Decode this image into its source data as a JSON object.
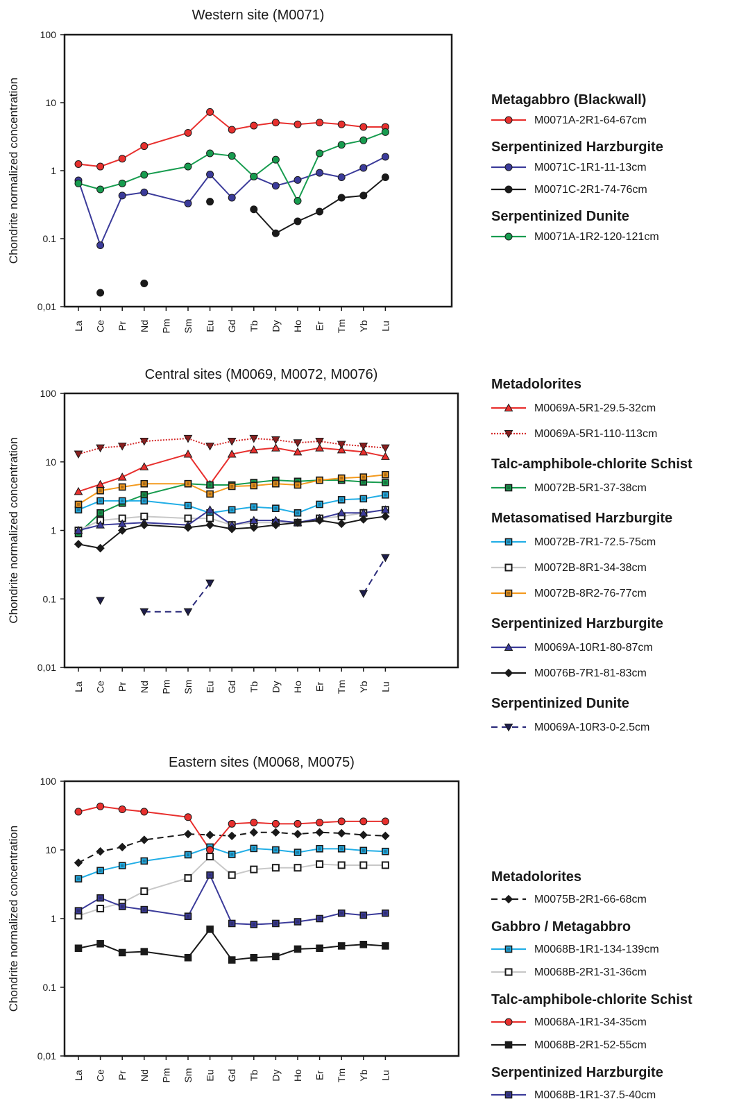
{
  "ylabel": "Chondrite normalized concentration",
  "y_ticks": [
    "100",
    "10",
    "1",
    "0.1",
    "0,01"
  ],
  "elements": [
    "La",
    "Ce",
    "Pr",
    "Nd",
    "Pm",
    "Sm",
    "Eu",
    "Gd",
    "Tb",
    "Dy",
    "Ho",
    "Er",
    "Tm",
    "Yb",
    "Lu"
  ],
  "chart_data": [
    {
      "type": "line",
      "title": "Western site (M0071)",
      "ylabel": "Chondrite normalized concentration",
      "ylim": [
        0.01,
        100
      ],
      "y_scale": "log",
      "categories": [
        "La",
        "Ce",
        "Pr",
        "Nd",
        "Pm",
        "Sm",
        "Eu",
        "Gd",
        "Tb",
        "Dy",
        "Ho",
        "Er",
        "Tm",
        "Yb",
        "Lu"
      ],
      "legend": [
        {
          "heading": "Metagabbro (Blackwall)",
          "items": [
            0
          ]
        },
        {
          "heading": "Serpentinized Harzburgite",
          "items": [
            1,
            2
          ]
        },
        {
          "heading": "Serpentinized Dunite",
          "items": [
            3
          ]
        }
      ],
      "series": [
        {
          "name": "M0071A-2R1-64-67cm",
          "color": "#e8302e",
          "marker": "circle",
          "fill": "#e8302e",
          "dash": "solid",
          "values": [
            1.25,
            1.15,
            1.5,
            2.3,
            null,
            3.6,
            7.3,
            4.0,
            4.6,
            5.1,
            4.8,
            5.1,
            4.8,
            4.4,
            4.4
          ]
        },
        {
          "name": "M0071C-1R1-11-13cm",
          "color": "#3b3b9a",
          "marker": "circle",
          "fill": "#3b3b9a",
          "dash": "solid",
          "values": [
            0.72,
            0.08,
            0.43,
            0.48,
            null,
            0.33,
            0.88,
            0.4,
            0.82,
            0.6,
            0.73,
            0.93,
            0.8,
            1.1,
            1.6
          ]
        },
        {
          "name": "M0071C-2R1-74-76cm",
          "color": "#1a1a1a",
          "marker": "circle",
          "fill": "#1a1a1a",
          "dash": "solid",
          "values": [
            null,
            0.016,
            null,
            0.022,
            null,
            null,
            0.35,
            null,
            0.27,
            0.12,
            0.18,
            0.25,
            0.4,
            0.43,
            0.8
          ]
        },
        {
          "name": "M0071A-1R2-120-121cm",
          "color": "#179c4f",
          "marker": "circle",
          "fill": "#179c4f",
          "dash": "solid",
          "values": [
            0.65,
            0.53,
            0.65,
            0.87,
            null,
            1.15,
            1.8,
            1.65,
            0.82,
            1.45,
            0.36,
            1.8,
            2.4,
            2.8,
            3.7
          ]
        }
      ]
    },
    {
      "type": "line",
      "title": "Central sites (M0069, M0072, M0076)",
      "ylabel": "Chondrite normalized concentration",
      "ylim": [
        0.01,
        100
      ],
      "y_scale": "log",
      "categories": [
        "La",
        "Ce",
        "Pr",
        "Nd",
        "Pm",
        "Sm",
        "Eu",
        "Gd",
        "Tb",
        "Dy",
        "Ho",
        "Er",
        "Tm",
        "Yb",
        "Lu"
      ],
      "legend": [
        {
          "heading": "Metadolorites",
          "items": [
            0,
            1
          ]
        },
        {
          "heading": "Talc-amphibole-chlorite Schist",
          "items": [
            2
          ]
        },
        {
          "heading": "Metasomatised Harzburgite",
          "items": [
            3,
            4,
            5
          ]
        },
        {
          "heading": "Serpentinized Harzburgite",
          "items": [
            6,
            7
          ]
        },
        {
          "heading": "Serpentinized Dunite",
          "items": [
            8
          ]
        }
      ],
      "series": [
        {
          "name": "M0069A-5R1-29.5-32cm",
          "color": "#e8302e",
          "marker": "triangle-up",
          "fill": "#e8302e",
          "dash": "solid",
          "values": [
            3.7,
            4.7,
            6.0,
            8.5,
            null,
            13.0,
            4.7,
            13.0,
            15.0,
            16.0,
            14.0,
            16.0,
            15.0,
            14.0,
            12.0
          ]
        },
        {
          "name": "M0069A-5R1-110-113cm",
          "color": "#d42a2a",
          "marker": "triangle-down",
          "fill": "#8a2020",
          "dash": "dotted",
          "values": [
            13.0,
            16.0,
            17.0,
            20.0,
            null,
            22.0,
            17.0,
            20.0,
            22.0,
            21.0,
            19.0,
            20.0,
            18.0,
            17.0,
            16.0
          ]
        },
        {
          "name": "M0072B-5R1-37-38cm",
          "color": "#179c4f",
          "marker": "square",
          "fill": "#179c4f",
          "dash": "solid",
          "values": [
            0.9,
            1.8,
            2.5,
            3.3,
            null,
            4.8,
            4.6,
            4.6,
            5.0,
            5.4,
            5.2,
            5.4,
            5.4,
            5.1,
            5.0
          ]
        },
        {
          "name": "M0072B-7R1-72.5-75cm",
          "color": "#22aee6",
          "marker": "square",
          "fill": "#22aee6",
          "dash": "solid",
          "values": [
            2.0,
            2.7,
            2.7,
            2.7,
            null,
            2.3,
            1.8,
            2.0,
            2.2,
            2.1,
            1.8,
            2.4,
            2.8,
            2.9,
            3.3
          ]
        },
        {
          "name": "M0072B-8R1-34-38cm",
          "color": "#c8c8c8",
          "marker": "square-open",
          "fill": "#ffffff",
          "dash": "solid",
          "values": [
            1.0,
            1.4,
            1.5,
            1.6,
            null,
            1.5,
            1.5,
            1.2,
            1.3,
            1.3,
            1.3,
            1.5,
            1.6,
            1.8,
            2.0
          ]
        },
        {
          "name": "M0072B-8R2-76-77cm",
          "color": "#f39a1f",
          "marker": "square",
          "fill": "#f39a1f",
          "dash": "solid",
          "values": [
            2.4,
            3.8,
            4.3,
            4.8,
            null,
            4.8,
            3.4,
            4.4,
            4.5,
            4.8,
            4.6,
            5.4,
            5.8,
            6.0,
            6.5
          ]
        },
        {
          "name": "M0069A-10R1-80-87cm",
          "color": "#3b3b9a",
          "marker": "triangle-up",
          "fill": "#3b3b9a",
          "dash": "solid",
          "values": [
            1.0,
            1.2,
            1.25,
            1.3,
            null,
            1.2,
            2.0,
            1.2,
            1.4,
            1.4,
            1.3,
            1.5,
            1.8,
            1.8,
            2.0
          ]
        },
        {
          "name": "M0076B-7R1-81-83cm",
          "color": "#1a1a1a",
          "marker": "diamond",
          "fill": "#1a1a1a",
          "dash": "solid",
          "values": [
            0.63,
            0.55,
            1.0,
            1.2,
            null,
            1.1,
            1.2,
            1.05,
            1.1,
            1.2,
            1.3,
            1.4,
            1.25,
            1.45,
            1.6
          ]
        },
        {
          "name": "M0069A-10R3-0-2.5cm",
          "color": "#2a2a7a",
          "marker": "triangle-down",
          "fill": "#1e1e4a",
          "dash": "dashed",
          "values": [
            null,
            0.095,
            null,
            0.065,
            null,
            0.065,
            0.17,
            null,
            null,
            null,
            null,
            null,
            null,
            0.12,
            0.4
          ]
        }
      ]
    },
    {
      "type": "line",
      "title": "Eastern sites (M0068, M0075)",
      "ylabel": "Chondrite normalized concentration",
      "ylim": [
        0.01,
        100
      ],
      "y_scale": "log",
      "categories": [
        "La",
        "Ce",
        "Pr",
        "Nd",
        "Pm",
        "Sm",
        "Eu",
        "Gd",
        "Tb",
        "Dy",
        "Ho",
        "Er",
        "Tm",
        "Yb",
        "Lu"
      ],
      "legend": [
        {
          "heading": "Metadolorites",
          "items": [
            0
          ]
        },
        {
          "heading": "Gabbro / Metagabbro",
          "items": [
            1,
            2
          ]
        },
        {
          "heading": "Talc-amphibole-chlorite Schist",
          "items": [
            3,
            4
          ]
        },
        {
          "heading": "Serpentinized Harzburgite",
          "items": [
            5
          ]
        }
      ],
      "series": [
        {
          "name": "M0075B-2R1-66-68cm",
          "color": "#1a1a1a",
          "marker": "diamond",
          "fill": "#1a1a1a",
          "dash": "dashed",
          "values": [
            6.5,
            9.5,
            11.0,
            14.0,
            null,
            17.0,
            16.5,
            16.0,
            18.0,
            18.0,
            17.0,
            18.0,
            17.5,
            16.5,
            16.0
          ]
        },
        {
          "name": "M0068B-1R1-134-139cm",
          "color": "#22aee6",
          "marker": "square",
          "fill": "#22aee6",
          "dash": "solid",
          "values": [
            3.8,
            5.0,
            5.9,
            6.9,
            null,
            8.5,
            11.0,
            8.6,
            10.5,
            10.0,
            9.2,
            10.4,
            10.4,
            9.8,
            9.5
          ]
        },
        {
          "name": "M0068B-2R1-31-36cm",
          "color": "#c8c8c8",
          "marker": "square-open",
          "fill": "#ffffff",
          "dash": "solid",
          "values": [
            1.1,
            1.4,
            1.7,
            2.5,
            null,
            3.9,
            8.0,
            4.3,
            5.2,
            5.5,
            5.5,
            6.2,
            6.0,
            6.0,
            6.0
          ]
        },
        {
          "name": "M0068A-1R1-34-35cm",
          "color": "#e8302e",
          "marker": "circle",
          "fill": "#e8302e",
          "dash": "solid",
          "values": [
            36.0,
            43.0,
            39.0,
            36.0,
            null,
            30.0,
            10.0,
            24.0,
            25.0,
            24.0,
            24.0,
            25.0,
            26.0,
            26.0,
            26.0
          ]
        },
        {
          "name": "M0068B-2R1-52-55cm",
          "color": "#1a1a1a",
          "marker": "square",
          "fill": "#1a1a1a",
          "dash": "solid",
          "values": [
            0.37,
            0.43,
            0.32,
            0.33,
            null,
            0.27,
            0.7,
            0.25,
            0.27,
            0.28,
            0.36,
            0.37,
            0.4,
            0.42,
            0.4
          ]
        },
        {
          "name": "M0068B-1R1-37.5-40cm",
          "color": "#3b3b9a",
          "marker": "square",
          "fill": "#3b3b9a",
          "dash": "solid",
          "values": [
            1.3,
            2.0,
            1.5,
            1.35,
            null,
            1.08,
            4.3,
            0.85,
            0.82,
            0.85,
            0.9,
            1.0,
            1.2,
            1.12,
            1.2
          ]
        }
      ]
    }
  ]
}
